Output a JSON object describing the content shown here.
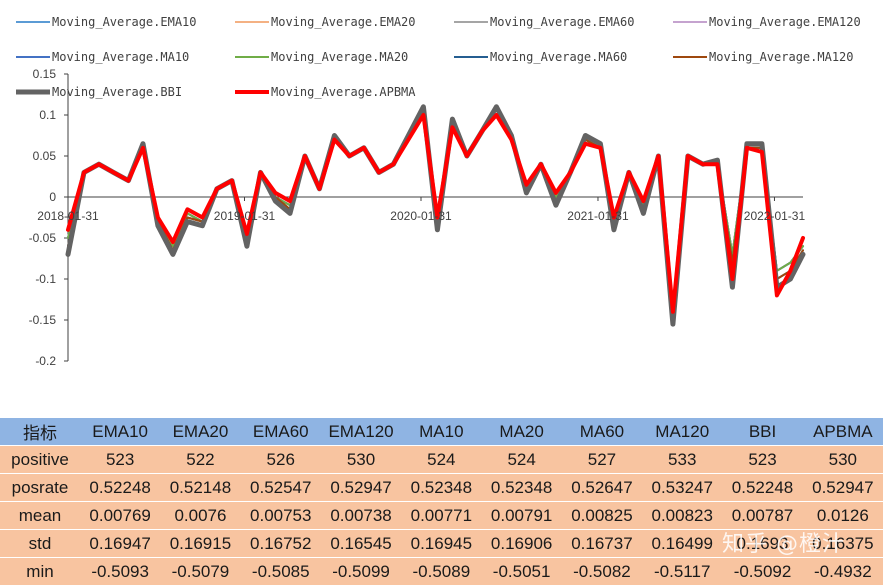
{
  "chart_data": {
    "type": "line",
    "title": "",
    "xlabel": "",
    "ylabel": "",
    "ylim": [
      -0.2,
      0.15
    ],
    "yticks": [
      -0.2,
      -0.15,
      -0.1,
      -0.05,
      0,
      0.05,
      0.1,
      0.15
    ],
    "ytick_labels": [
      "-0.2",
      "-0.15",
      "-0.1",
      "-0.05",
      "0",
      "0.05",
      "0.1",
      "0.15"
    ],
    "xlim": [
      "2018-01-31",
      "2022-03-31"
    ],
    "xticks": [
      "2018-01-31",
      "2019-01-31",
      "2020-01-31",
      "2021-01-31",
      "2022-01-31"
    ],
    "grid": false,
    "legend_position": "top",
    "x": [
      "2018-01-31",
      "2018-03-05",
      "2018-04-05",
      "2018-05-05",
      "2018-06-05",
      "2018-07-05",
      "2018-08-05",
      "2018-09-05",
      "2018-10-05",
      "2018-11-05",
      "2018-12-05",
      "2019-01-05",
      "2019-02-05",
      "2019-03-05",
      "2019-04-05",
      "2019-05-05",
      "2019-06-05",
      "2019-07-05",
      "2019-08-05",
      "2019-09-05",
      "2019-10-05",
      "2019-11-05",
      "2019-12-05",
      "2020-01-05",
      "2020-02-05",
      "2020-03-05",
      "2020-04-05",
      "2020-05-05",
      "2020-06-05",
      "2020-07-05",
      "2020-08-05",
      "2020-09-05",
      "2020-10-05",
      "2020-11-05",
      "2020-12-05",
      "2021-01-05",
      "2021-02-05",
      "2021-03-05",
      "2021-04-05",
      "2021-05-05",
      "2021-06-05",
      "2021-07-05",
      "2021-08-05",
      "2021-09-05",
      "2021-10-05",
      "2021-11-05",
      "2021-12-05",
      "2022-01-05",
      "2022-02-05",
      "2022-03-05",
      "2022-03-31"
    ],
    "series": [
      {
        "name": "Moving_Average.EMA10",
        "color": "#5b9bd5",
        "width": 2,
        "values": [
          -0.05,
          0.03,
          0.04,
          0.03,
          0.02,
          0.06,
          -0.03,
          -0.06,
          -0.02,
          -0.03,
          0.01,
          0.02,
          -0.05,
          0.03,
          0.0,
          -0.01,
          0.05,
          0.01,
          0.07,
          0.05,
          0.06,
          0.03,
          0.04,
          0.07,
          0.1,
          -0.03,
          0.09,
          0.05,
          0.08,
          0.1,
          0.07,
          0.01,
          0.04,
          0.0,
          0.03,
          0.07,
          0.06,
          -0.03,
          0.03,
          -0.01,
          0.05,
          -0.14,
          0.05,
          0.04,
          0.04,
          -0.07,
          0.06,
          0.06,
          -0.09,
          -0.08,
          -0.06
        ]
      },
      {
        "name": "Moving_Average.EMA20",
        "color": "#f4b183",
        "width": 2,
        "values": [
          -0.05,
          0.03,
          0.04,
          0.03,
          0.02,
          0.06,
          -0.03,
          -0.06,
          -0.02,
          -0.03,
          0.01,
          0.02,
          -0.05,
          0.03,
          0.0,
          -0.01,
          0.05,
          0.01,
          0.07,
          0.05,
          0.06,
          0.03,
          0.04,
          0.07,
          0.1,
          -0.03,
          0.09,
          0.05,
          0.08,
          0.1,
          0.07,
          0.01,
          0.04,
          0.0,
          0.03,
          0.07,
          0.06,
          -0.03,
          0.03,
          -0.01,
          0.05,
          -0.14,
          0.05,
          0.04,
          0.04,
          -0.07,
          0.06,
          0.06,
          -0.09,
          -0.08,
          -0.06
        ]
      },
      {
        "name": "Moving_Average.EMA60",
        "color": "#a5a5a5",
        "width": 2,
        "values": [
          -0.05,
          0.03,
          0.04,
          0.03,
          0.02,
          0.06,
          -0.03,
          -0.06,
          -0.02,
          -0.03,
          0.01,
          0.02,
          -0.05,
          0.03,
          0.0,
          -0.01,
          0.05,
          0.01,
          0.07,
          0.05,
          0.06,
          0.03,
          0.04,
          0.07,
          0.1,
          -0.03,
          0.09,
          0.05,
          0.08,
          0.1,
          0.07,
          0.01,
          0.04,
          0.0,
          0.03,
          0.07,
          0.06,
          -0.03,
          0.03,
          -0.01,
          0.05,
          -0.14,
          0.05,
          0.04,
          0.04,
          -0.07,
          0.06,
          0.06,
          -0.09,
          -0.08,
          -0.06
        ]
      },
      {
        "name": "Moving_Average.EMA120",
        "color": "#c5a3cf",
        "width": 2,
        "values": [
          -0.05,
          0.03,
          0.04,
          0.03,
          0.02,
          0.06,
          -0.03,
          -0.06,
          -0.02,
          -0.03,
          0.01,
          0.02,
          -0.05,
          0.03,
          0.0,
          -0.01,
          0.05,
          0.01,
          0.07,
          0.05,
          0.06,
          0.03,
          0.04,
          0.07,
          0.1,
          -0.03,
          0.09,
          0.05,
          0.08,
          0.1,
          0.07,
          0.01,
          0.04,
          0.0,
          0.03,
          0.07,
          0.06,
          -0.03,
          0.03,
          -0.01,
          0.05,
          -0.14,
          0.05,
          0.04,
          0.04,
          -0.07,
          0.06,
          0.06,
          -0.09,
          -0.08,
          -0.06
        ]
      },
      {
        "name": "Moving_Average.MA10",
        "color": "#4472c4",
        "width": 2,
        "values": [
          -0.05,
          0.03,
          0.04,
          0.03,
          0.02,
          0.06,
          -0.03,
          -0.06,
          -0.02,
          -0.03,
          0.01,
          0.02,
          -0.05,
          0.03,
          0.0,
          -0.01,
          0.05,
          0.01,
          0.07,
          0.05,
          0.06,
          0.03,
          0.04,
          0.07,
          0.1,
          -0.03,
          0.09,
          0.05,
          0.08,
          0.1,
          0.07,
          0.01,
          0.04,
          0.0,
          0.03,
          0.07,
          0.06,
          -0.03,
          0.03,
          -0.01,
          0.05,
          -0.14,
          0.05,
          0.04,
          0.04,
          -0.07,
          0.06,
          0.06,
          -0.09,
          -0.08,
          -0.06
        ]
      },
      {
        "name": "Moving_Average.MA20",
        "color": "#70ad47",
        "width": 2,
        "values": [
          -0.05,
          0.03,
          0.04,
          0.03,
          0.02,
          0.06,
          -0.03,
          -0.06,
          -0.02,
          -0.03,
          0.01,
          0.02,
          -0.05,
          0.03,
          0.0,
          -0.01,
          0.05,
          0.01,
          0.07,
          0.05,
          0.06,
          0.03,
          0.04,
          0.07,
          0.1,
          -0.03,
          0.09,
          0.05,
          0.08,
          0.1,
          0.07,
          0.01,
          0.04,
          0.0,
          0.03,
          0.07,
          0.06,
          -0.03,
          0.03,
          -0.01,
          0.05,
          -0.14,
          0.05,
          0.04,
          0.04,
          -0.07,
          0.06,
          0.06,
          -0.09,
          -0.08,
          -0.06
        ]
      },
      {
        "name": "Moving_Average.MA60",
        "color": "#255e91",
        "width": 2,
        "values": [
          -0.06,
          0.03,
          0.04,
          0.03,
          0.02,
          0.06,
          -0.03,
          -0.065,
          -0.025,
          -0.03,
          0.01,
          0.02,
          -0.055,
          0.03,
          0.0,
          -0.015,
          0.05,
          0.01,
          0.07,
          0.05,
          0.06,
          0.03,
          0.04,
          0.07,
          0.1,
          -0.035,
          0.09,
          0.05,
          0.08,
          0.1,
          0.07,
          0.01,
          0.04,
          -0.005,
          0.03,
          0.07,
          0.06,
          -0.035,
          0.03,
          -0.015,
          0.05,
          -0.15,
          0.05,
          0.04,
          0.04,
          -0.08,
          0.06,
          0.06,
          -0.1,
          -0.09,
          -0.065
        ]
      },
      {
        "name": "Moving_Average.MA120",
        "color": "#9e480e",
        "width": 2,
        "values": [
          -0.06,
          0.03,
          0.04,
          0.03,
          0.02,
          0.06,
          -0.03,
          -0.065,
          -0.025,
          -0.03,
          0.01,
          0.02,
          -0.055,
          0.03,
          0.0,
          -0.015,
          0.05,
          0.01,
          0.07,
          0.05,
          0.06,
          0.03,
          0.04,
          0.07,
          0.1,
          -0.035,
          0.09,
          0.05,
          0.08,
          0.1,
          0.07,
          0.01,
          0.04,
          -0.005,
          0.03,
          0.07,
          0.06,
          -0.035,
          0.03,
          -0.015,
          0.05,
          -0.15,
          0.05,
          0.04,
          0.04,
          -0.08,
          0.06,
          0.06,
          -0.1,
          -0.09,
          -0.065
        ]
      },
      {
        "name": "Moving_Average.BBI",
        "color": "#636363",
        "width": 5,
        "values": [
          -0.07,
          0.03,
          0.04,
          0.03,
          0.02,
          0.065,
          -0.035,
          -0.07,
          -0.03,
          -0.035,
          0.01,
          0.02,
          -0.06,
          0.03,
          -0.005,
          -0.02,
          0.05,
          0.01,
          0.075,
          0.05,
          0.06,
          0.03,
          0.04,
          0.075,
          0.11,
          -0.04,
          0.095,
          0.05,
          0.08,
          0.11,
          0.075,
          0.005,
          0.04,
          -0.01,
          0.03,
          0.075,
          0.065,
          -0.04,
          0.03,
          -0.02,
          0.05,
          -0.155,
          0.05,
          0.04,
          0.045,
          -0.11,
          0.065,
          0.065,
          -0.11,
          -0.1,
          -0.07
        ]
      },
      {
        "name": "Moving_Average.APBMA",
        "color": "#ff0000",
        "width": 4,
        "values": [
          -0.04,
          0.03,
          0.04,
          0.03,
          0.02,
          0.06,
          -0.025,
          -0.055,
          -0.015,
          -0.025,
          0.01,
          0.02,
          -0.045,
          0.03,
          0.005,
          -0.005,
          0.05,
          0.01,
          0.07,
          0.05,
          0.06,
          0.03,
          0.04,
          0.07,
          0.1,
          -0.025,
          0.085,
          0.05,
          0.08,
          0.1,
          0.07,
          0.015,
          0.04,
          0.005,
          0.03,
          0.065,
          0.06,
          -0.025,
          0.03,
          -0.005,
          0.05,
          -0.14,
          0.05,
          0.04,
          0.04,
          -0.1,
          0.06,
          0.055,
          -0.12,
          -0.09,
          -0.05
        ]
      }
    ]
  },
  "table": {
    "headers": [
      "指标",
      "EMA10",
      "EMA20",
      "EMA60",
      "EMA120",
      "MA10",
      "MA20",
      "MA60",
      "MA120",
      "BBI",
      "APBMA"
    ],
    "rows": [
      [
        "positive",
        "523",
        "522",
        "526",
        "530",
        "524",
        "524",
        "527",
        "533",
        "523",
        "530"
      ],
      [
        "posrate",
        "0.52248",
        "0.52148",
        "0.52547",
        "0.52947",
        "0.52348",
        "0.52348",
        "0.52647",
        "0.53247",
        "0.52248",
        "0.52947"
      ],
      [
        "mean",
        "0.00769",
        "0.0076",
        "0.00753",
        "0.00738",
        "0.00771",
        "0.00791",
        "0.00825",
        "0.00823",
        "0.00787",
        "0.0126"
      ],
      [
        "std",
        "0.16947",
        "0.16915",
        "0.16752",
        "0.16545",
        "0.16945",
        "0.16906",
        "0.16737",
        "0.16499",
        "0.1693",
        "0.16375"
      ],
      [
        "min",
        "-0.5093",
        "-0.5079",
        "-0.5085",
        "-0.5099",
        "-0.5089",
        "-0.5051",
        "-0.5082",
        "-0.5117",
        "-0.5092",
        "-0.4932"
      ]
    ]
  },
  "watermark": "知乎 @橙汁"
}
